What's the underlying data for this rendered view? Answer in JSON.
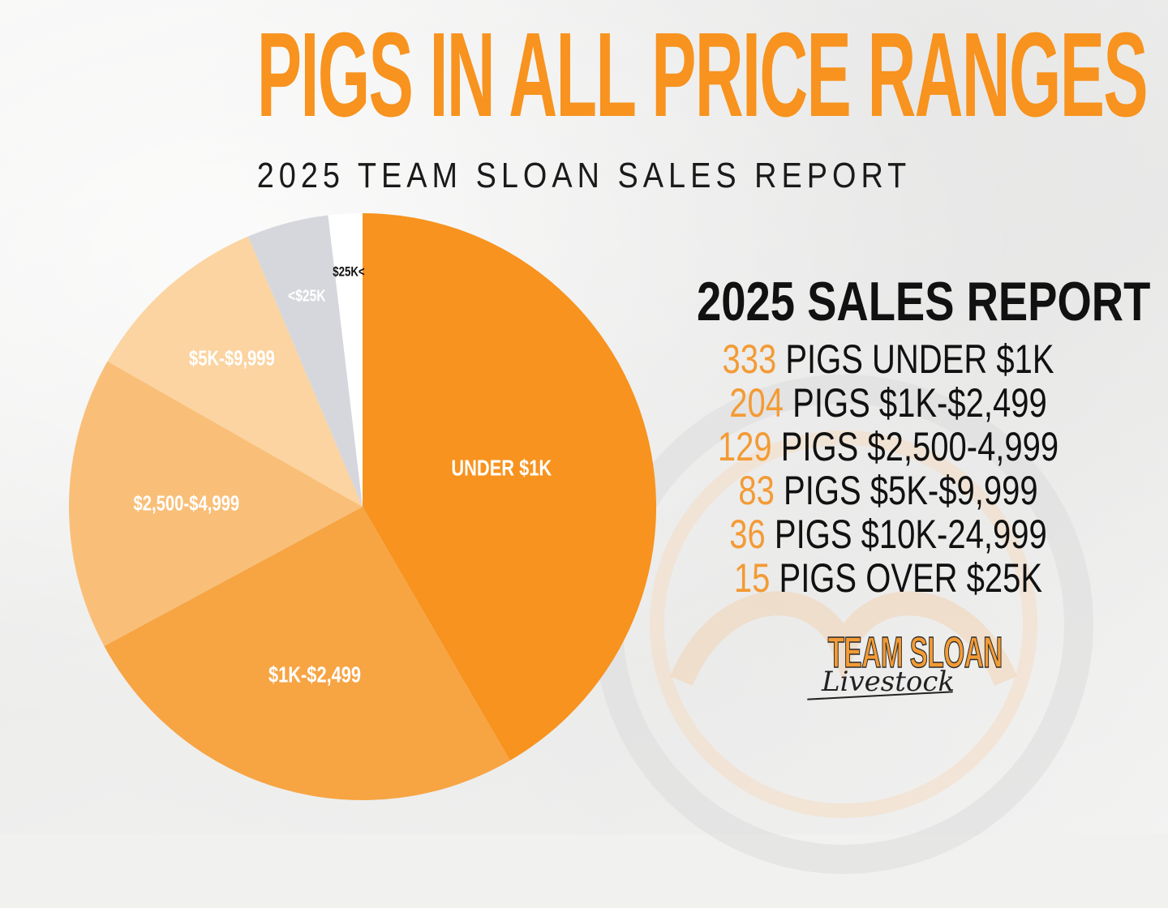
{
  "header": {
    "title": "PIGS IN ALL PRICE RANGES",
    "subtitle": "2025 TEAM SLOAN SALES REPORT"
  },
  "report": {
    "title": "2025 SALES REPORT",
    "lines": [
      {
        "count": "333",
        "text": "PIGS UNDER $1K"
      },
      {
        "count": "204",
        "text": "PIGS $1K-$2,499"
      },
      {
        "count": "129",
        "text": "PIGS $2,500-4,999"
      },
      {
        "count": "83",
        "text": "PIGS $5K-$9,999"
      },
      {
        "count": "36",
        "text": "PIGS $10K-24,999"
      },
      {
        "count": "15",
        "text": "PIGS OVER $25K"
      }
    ]
  },
  "logo": {
    "name": "TEAM SLOAN",
    "script": "Livestock"
  },
  "chart_data": {
    "type": "pie",
    "start": "12 o'clock",
    "direction": "clockwise",
    "slices": [
      {
        "label": "UNDER $1K",
        "value": 333,
        "color": "#f7931e",
        "label_color": "#ffffff"
      },
      {
        "label": "$1K-$2,499",
        "value": 204,
        "color": "#f7a443",
        "label_color": "#ffffff"
      },
      {
        "label": "$2,500-$4,999",
        "value": 129,
        "color": "#f9bf78",
        "label_color": "#ffffff"
      },
      {
        "label": "$5K-$9,999",
        "value": 83,
        "color": "#fbd4a1",
        "label_color": "#ffffff"
      },
      {
        "label": "<$25K",
        "value": 36,
        "color": "#d6d7dc",
        "label_color": "#ffffff"
      },
      {
        "label": "$25K<",
        "value": 15,
        "color": "#ffffff",
        "label_color": "#111111"
      }
    ]
  }
}
